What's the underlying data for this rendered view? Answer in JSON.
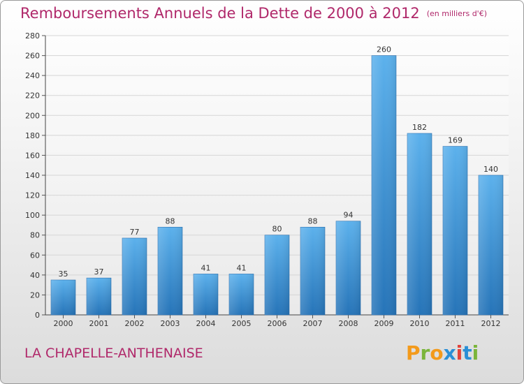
{
  "title": "Remboursements Annuels de la Dette de 2000 à 2012",
  "unit": "(en milliers d'€)",
  "commune": "LA CHAPELLE-ANTHENAISE",
  "logo": {
    "letters": [
      "P",
      "r",
      "o",
      "x",
      "i",
      "t",
      "i"
    ],
    "colors": [
      "#f39a1b",
      "#7bb53b",
      "#f39a1b",
      "#2a8fd6",
      "#e2433b",
      "#2a8fd6",
      "#7bb53b"
    ]
  },
  "colors": {
    "bar": "#3a93d8",
    "bar_light": "#5bb0ea",
    "bar_dark": "#2573b6",
    "title": "#b0286a"
  },
  "chart_data": {
    "type": "bar",
    "title": "Remboursements Annuels de la Dette de 2000 à 2012",
    "xlabel": "",
    "ylabel": "(en milliers d'€)",
    "categories": [
      "2000",
      "2001",
      "2002",
      "2003",
      "2004",
      "2005",
      "2006",
      "2007",
      "2008",
      "2009",
      "2010",
      "2011",
      "2012"
    ],
    "values": [
      35,
      37,
      77,
      88,
      41,
      41,
      80,
      88,
      94,
      260,
      182,
      169,
      140
    ],
    "ylim": [
      0,
      280
    ],
    "yticks": [
      0,
      20,
      40,
      60,
      80,
      100,
      120,
      140,
      160,
      180,
      200,
      220,
      240,
      260,
      280
    ],
    "grid": true
  }
}
